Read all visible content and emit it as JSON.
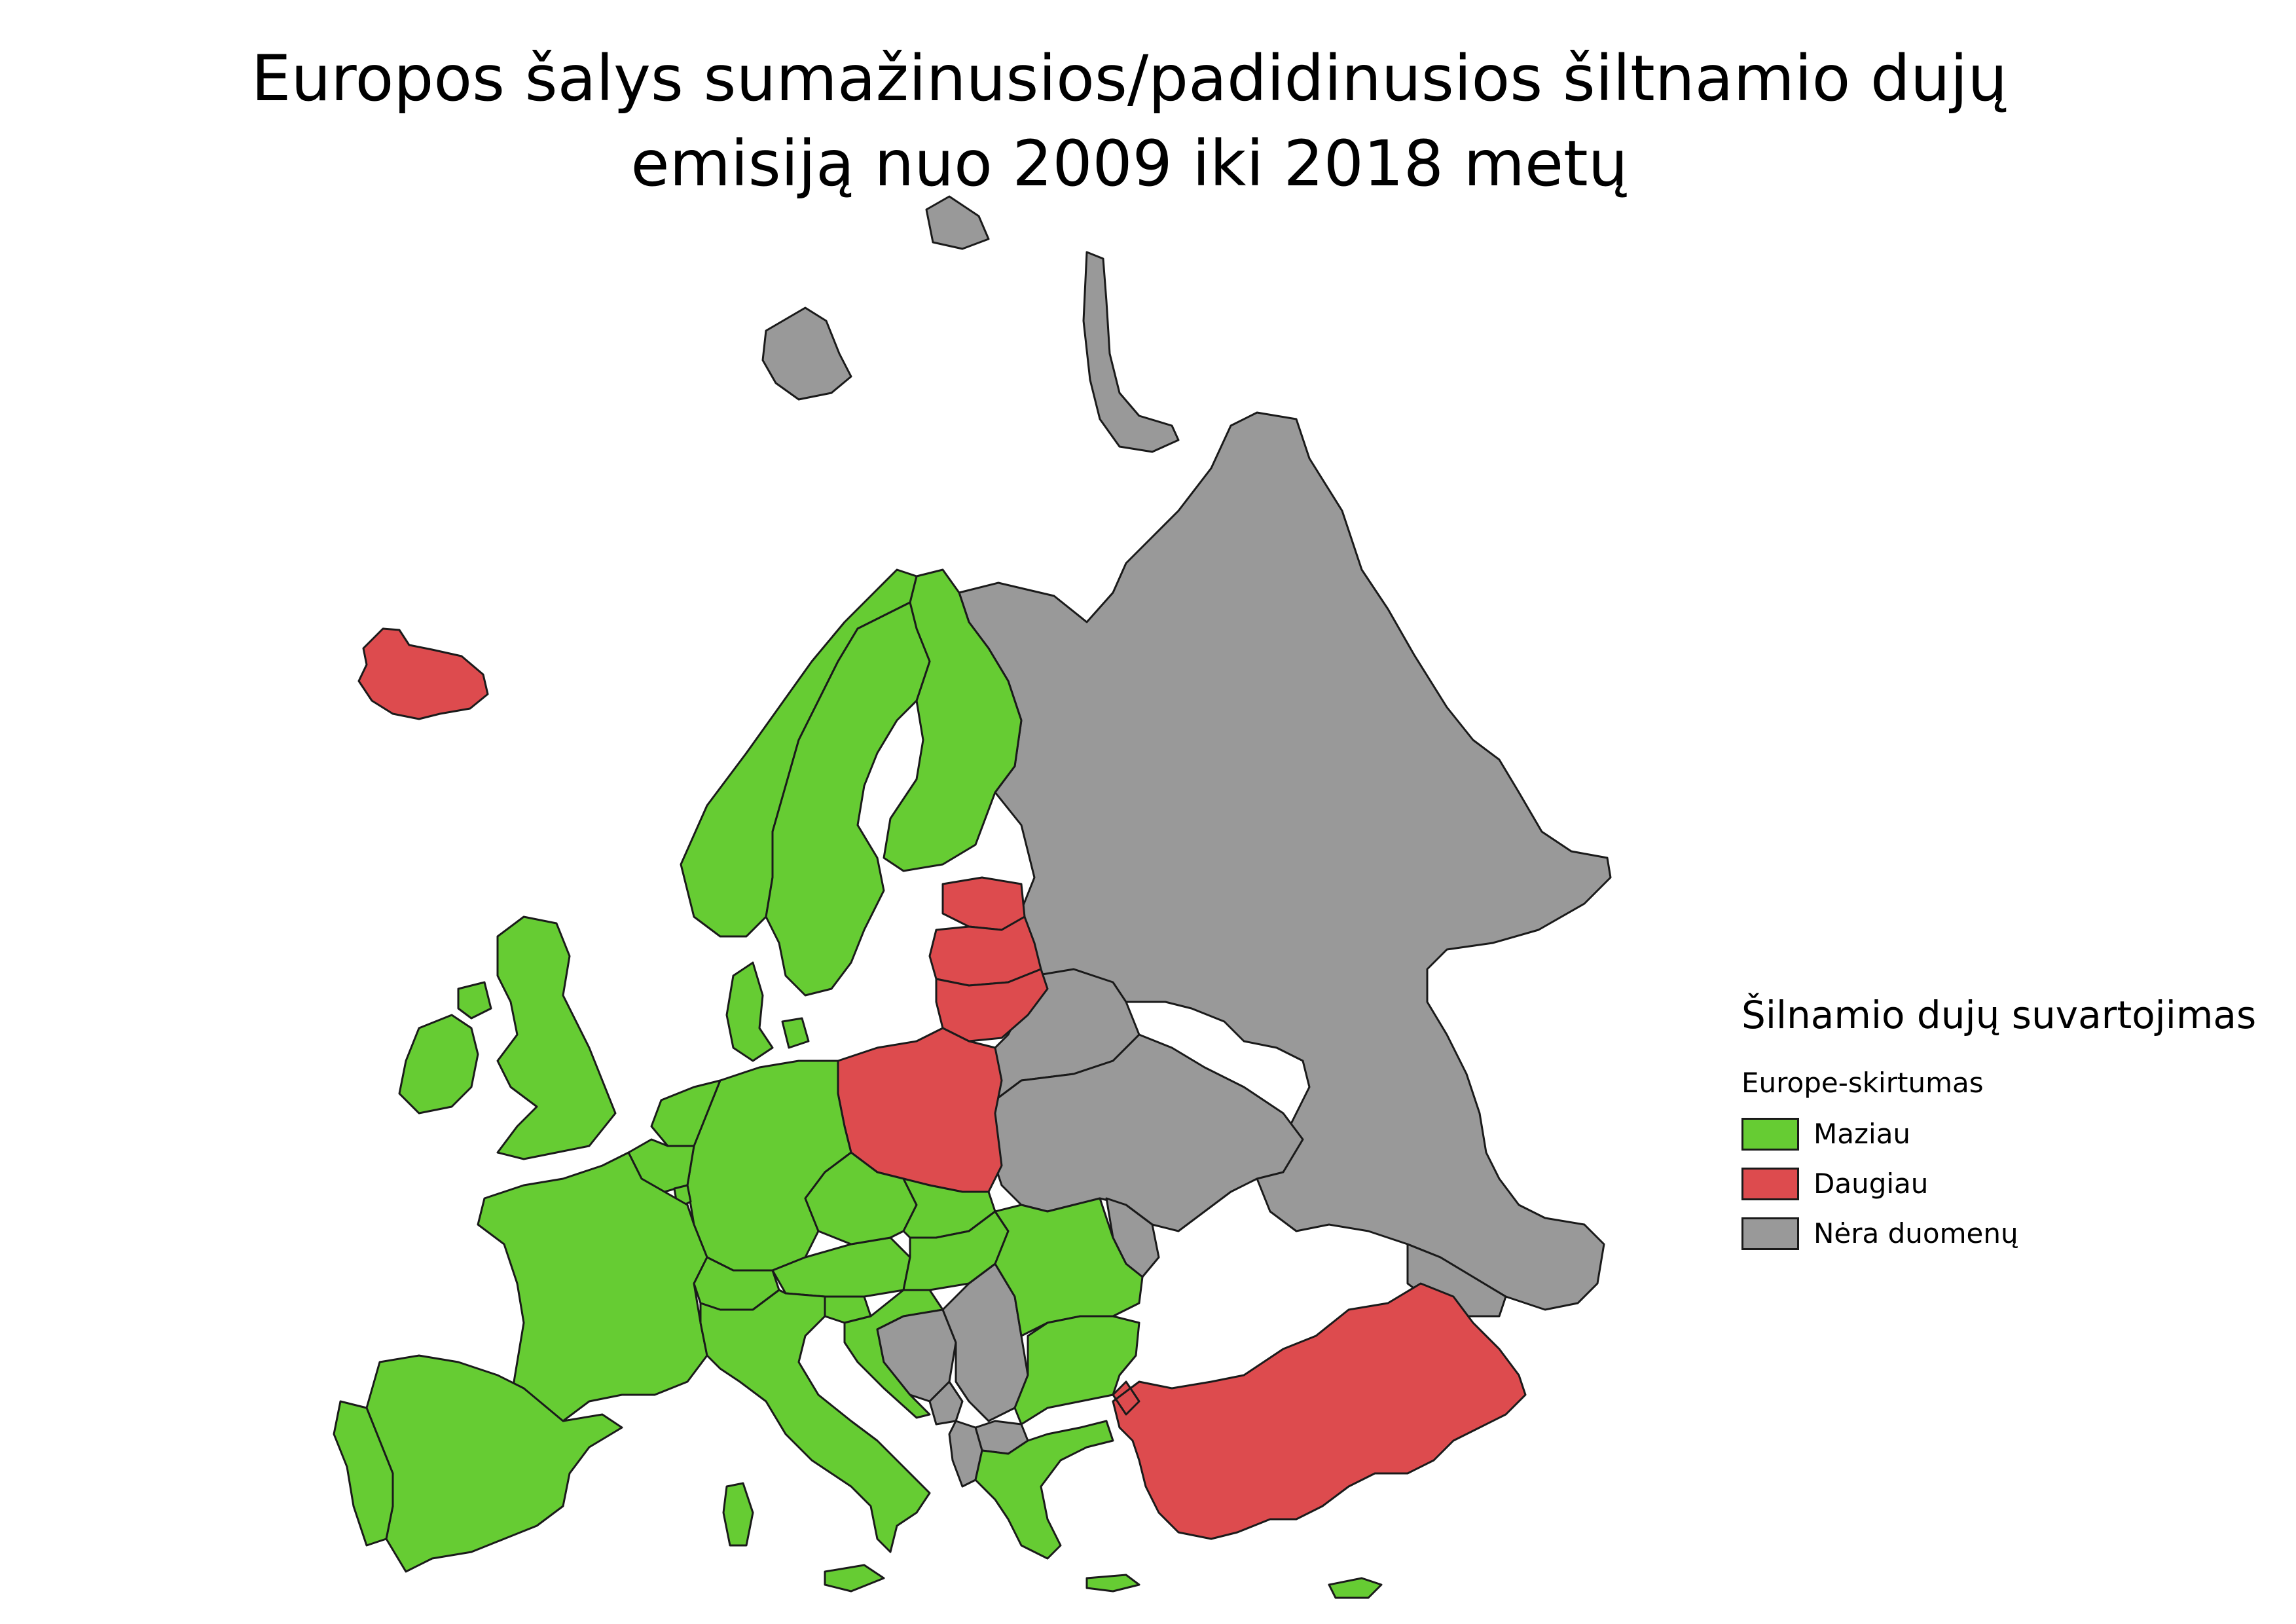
{
  "title": {
    "line1": "Europos šalys sumažinusios/padidinusios šiltnamio dujų",
    "line2": "emisiją nuo 2009 iki 2018 metų"
  },
  "colors": {
    "less": "#66cc33",
    "more": "#dd4b4e",
    "nodata": "#999999",
    "border": "#1a1a1a",
    "background": "#ffffff"
  },
  "legend": {
    "heading": "Šilnamio dujų suvartojimas",
    "subheading": "Europe-skirtumas",
    "items": [
      {
        "key": "less",
        "label": "Maziau"
      },
      {
        "key": "more",
        "label": "Daugiau"
      },
      {
        "key": "nodata",
        "label": "Nėra duomenų"
      }
    ]
  },
  "regions": [
    {
      "name": "Iceland",
      "category": "more"
    },
    {
      "name": "Ireland",
      "category": "less"
    },
    {
      "name": "United Kingdom",
      "category": "less"
    },
    {
      "name": "Norway",
      "category": "less"
    },
    {
      "name": "Sweden",
      "category": "less"
    },
    {
      "name": "Finland",
      "category": "less"
    },
    {
      "name": "Denmark",
      "category": "less"
    },
    {
      "name": "Estonia",
      "category": "more"
    },
    {
      "name": "Latvia",
      "category": "more"
    },
    {
      "name": "Lithuania",
      "category": "more"
    },
    {
      "name": "Poland",
      "category": "more"
    },
    {
      "name": "Germany",
      "category": "less"
    },
    {
      "name": "Netherlands",
      "category": "less"
    },
    {
      "name": "Belgium",
      "category": "less"
    },
    {
      "name": "Luxembourg",
      "category": "less"
    },
    {
      "name": "France",
      "category": "less"
    },
    {
      "name": "Spain",
      "category": "less"
    },
    {
      "name": "Portugal",
      "category": "less"
    },
    {
      "name": "Switzerland",
      "category": "less"
    },
    {
      "name": "Austria",
      "category": "less"
    },
    {
      "name": "Czechia",
      "category": "less"
    },
    {
      "name": "Slovakia",
      "category": "less"
    },
    {
      "name": "Hungary",
      "category": "less"
    },
    {
      "name": "Slovenia",
      "category": "less"
    },
    {
      "name": "Croatia",
      "category": "less"
    },
    {
      "name": "Italy",
      "category": "less"
    },
    {
      "name": "Romania",
      "category": "less"
    },
    {
      "name": "Bulgaria",
      "category": "less"
    },
    {
      "name": "Greece",
      "category": "less"
    },
    {
      "name": "Cyprus",
      "category": "less"
    },
    {
      "name": "Turkey",
      "category": "more"
    },
    {
      "name": "Russia",
      "category": "nodata"
    },
    {
      "name": "Belarus",
      "category": "nodata"
    },
    {
      "name": "Ukraine",
      "category": "nodata"
    },
    {
      "name": "Moldova",
      "category": "nodata"
    },
    {
      "name": "Bosnia and Herzegovina",
      "category": "nodata"
    },
    {
      "name": "Serbia",
      "category": "nodata"
    },
    {
      "name": "Montenegro",
      "category": "nodata"
    },
    {
      "name": "North Macedonia",
      "category": "nodata"
    },
    {
      "name": "Albania",
      "category": "nodata"
    },
    {
      "name": "Georgia",
      "category": "nodata"
    },
    {
      "name": "Svalbard",
      "category": "nodata"
    },
    {
      "name": "Novaya Zemlya",
      "category": "nodata"
    }
  ]
}
